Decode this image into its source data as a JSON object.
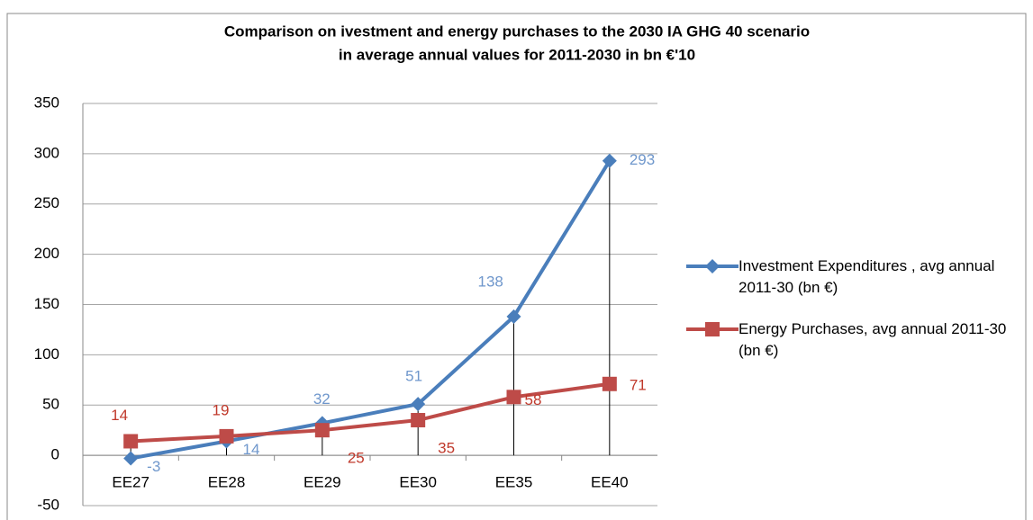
{
  "chart_data": {
    "type": "line",
    "title": "Comparison on ivestment and energy purchases to the 2030 IA GHG 40 scenario",
    "subtitle": "in average annual values for 2011-2030 in bn €'10",
    "categories": [
      "EE27",
      "EE28",
      "EE29",
      "EE30",
      "EE35",
      "EE40"
    ],
    "series": [
      {
        "name": "Investment Expenditures , avg annual 2011-30 (bn €)",
        "color": "#4a7ebb",
        "marker": "diamond",
        "label_color": "#6f97cc",
        "values": [
          -3,
          14,
          32,
          51,
          138,
          293
        ]
      },
      {
        "name": "Energy Purchases, avg annual 2011-30 (bn €)",
        "color": "#be4b48",
        "marker": "square",
        "label_color": "#c0392b",
        "values": [
          14,
          19,
          25,
          35,
          58,
          71
        ]
      }
    ],
    "ylim": [
      -50,
      350
    ],
    "yticks": [
      -50,
      0,
      50,
      100,
      150,
      200,
      250,
      300,
      350
    ],
    "grid": true,
    "drop_lines": true,
    "legend": "right"
  }
}
